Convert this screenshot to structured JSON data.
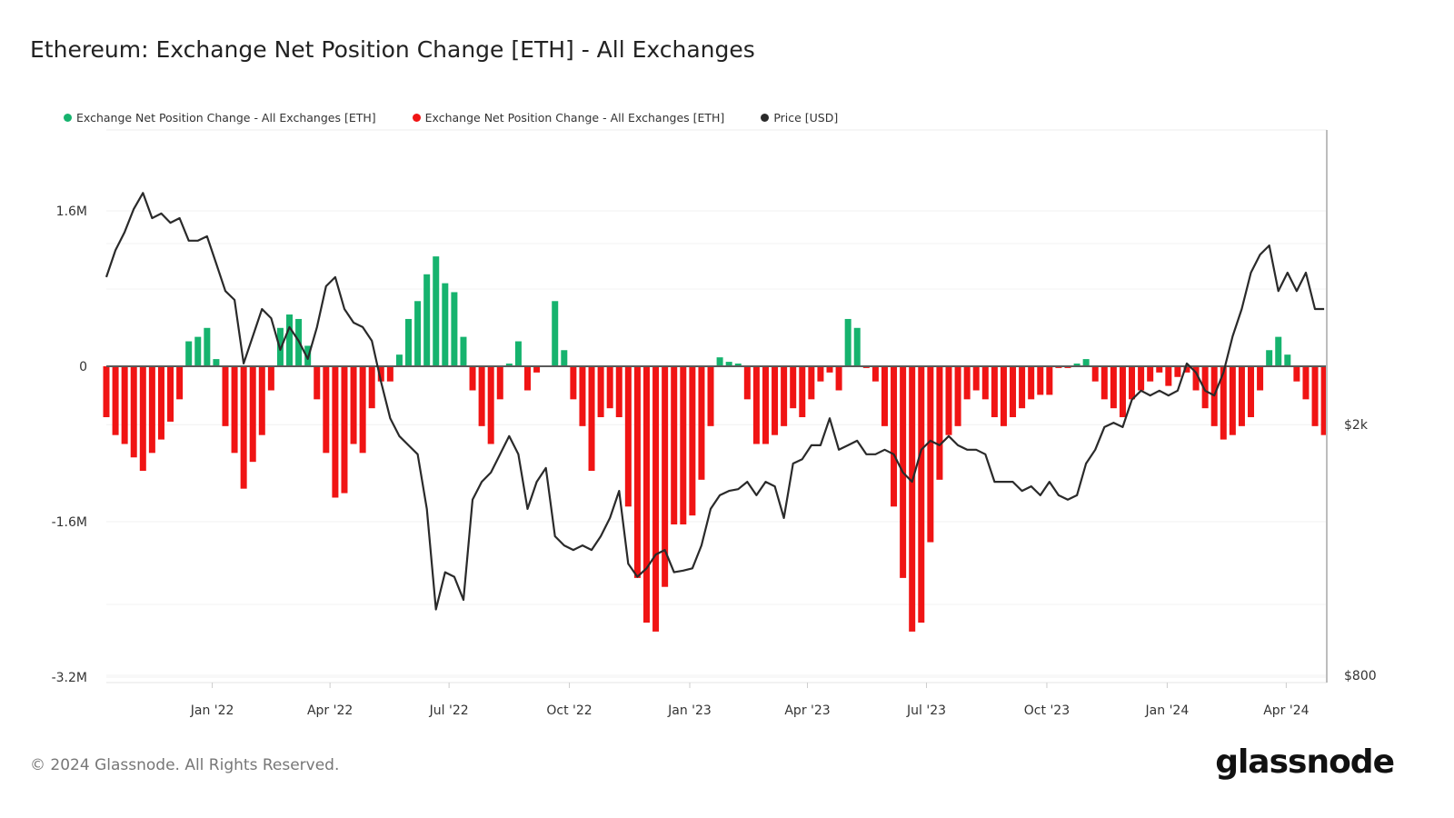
{
  "title": "Ethereum: Exchange Net Position Change [ETH] - All Exchanges",
  "footer": "© 2024 Glassnode. All Rights Reserved.",
  "logo": "glassnode",
  "colors": {
    "positive": "#16b36e",
    "negative": "#f01414",
    "price": "#2a2a2a",
    "zero_line": "#5a5a5a"
  },
  "chart_data": {
    "type": "bar",
    "title": "Ethereum: Exchange Net Position Change [ETH] - All Exchanges",
    "legend": [
      {
        "name": "Exchange Net Position Change - All Exchanges [ETH]",
        "color": "#16b36e"
      },
      {
        "name": "Exchange Net Position Change - All Exchanges [ETH]",
        "color": "#f01414"
      },
      {
        "name": "Price [USD]",
        "color": "#2a2a2a"
      }
    ],
    "legend_position": "top-left",
    "grid": true,
    "y_left": {
      "ticks": [
        "1.6M",
        "0",
        "-1.6M",
        "-3.2M"
      ],
      "tick_values": [
        1600000,
        0,
        -1600000,
        -3200000
      ],
      "range": [
        -3200000,
        1800000
      ]
    },
    "y_right": {
      "scale": "log",
      "ticks": [
        "$2k",
        "$800"
      ],
      "tick_values": [
        2000,
        800
      ]
    },
    "x_ticks": [
      "Jan '22",
      "Apr '22",
      "Jul '22",
      "Oct '22",
      "Jan '23",
      "Apr '23",
      "Jul '23",
      "Oct '23",
      "Jan '24",
      "Apr '24"
    ],
    "x_tick_dates": [
      "2022-01-01",
      "2022-04-01",
      "2022-07-01",
      "2022-10-01",
      "2023-01-01",
      "2023-04-01",
      "2023-07-01",
      "2023-10-01",
      "2024-01-01",
      "2024-04-01"
    ],
    "x_range": [
      "2021-10-12",
      "2024-05-02"
    ],
    "x": [
      "2021-10-12",
      "2021-10-19",
      "2021-10-26",
      "2021-11-02",
      "2021-11-09",
      "2021-11-16",
      "2021-11-23",
      "2021-11-30",
      "2021-12-07",
      "2021-12-14",
      "2021-12-21",
      "2021-12-28",
      "2022-01-04",
      "2022-01-11",
      "2022-01-18",
      "2022-01-25",
      "2022-02-01",
      "2022-02-08",
      "2022-02-15",
      "2022-02-22",
      "2022-03-01",
      "2022-03-08",
      "2022-03-15",
      "2022-03-22",
      "2022-03-29",
      "2022-04-05",
      "2022-04-12",
      "2022-04-19",
      "2022-04-26",
      "2022-05-03",
      "2022-05-10",
      "2022-05-17",
      "2022-05-24",
      "2022-05-31",
      "2022-06-07",
      "2022-06-14",
      "2022-06-21",
      "2022-06-28",
      "2022-07-05",
      "2022-07-12",
      "2022-07-19",
      "2022-07-26",
      "2022-08-02",
      "2022-08-09",
      "2022-08-16",
      "2022-08-23",
      "2022-08-30",
      "2022-09-06",
      "2022-09-13",
      "2022-09-20",
      "2022-09-27",
      "2022-10-04",
      "2022-10-11",
      "2022-10-18",
      "2022-10-25",
      "2022-11-01",
      "2022-11-08",
      "2022-11-15",
      "2022-11-22",
      "2022-11-29",
      "2022-12-06",
      "2022-12-13",
      "2022-12-20",
      "2022-12-27",
      "2023-01-03",
      "2023-01-10",
      "2023-01-17",
      "2023-01-24",
      "2023-01-31",
      "2023-02-07",
      "2023-02-14",
      "2023-02-21",
      "2023-02-28",
      "2023-03-07",
      "2023-03-14",
      "2023-03-21",
      "2023-03-28",
      "2023-04-04",
      "2023-04-11",
      "2023-04-18",
      "2023-04-25",
      "2023-05-02",
      "2023-05-09",
      "2023-05-16",
      "2023-05-23",
      "2023-05-30",
      "2023-06-06",
      "2023-06-13",
      "2023-06-20",
      "2023-06-27",
      "2023-07-04",
      "2023-07-11",
      "2023-07-18",
      "2023-07-25",
      "2023-08-01",
      "2023-08-08",
      "2023-08-15",
      "2023-08-22",
      "2023-08-29",
      "2023-09-05",
      "2023-09-12",
      "2023-09-19",
      "2023-09-26",
      "2023-10-03",
      "2023-10-10",
      "2023-10-17",
      "2023-10-24",
      "2023-10-31",
      "2023-11-07",
      "2023-11-14",
      "2023-11-21",
      "2023-11-28",
      "2023-12-05",
      "2023-12-12",
      "2023-12-19",
      "2023-12-26",
      "2024-01-02",
      "2024-01-09",
      "2024-01-16",
      "2024-01-23",
      "2024-01-30",
      "2024-02-06",
      "2024-02-13",
      "2024-02-20",
      "2024-02-27",
      "2024-03-05",
      "2024-03-12",
      "2024-03-19",
      "2024-03-26",
      "2024-04-02",
      "2024-04-09",
      "2024-04-16",
      "2024-04-23",
      "2024-04-30"
    ],
    "series": [
      {
        "name": "Exchange Net Position Change - All Exchanges [ETH]",
        "type": "bar",
        "axis": "left",
        "values": [
          -524000,
          -708000,
          -800000,
          -938000,
          -1076000,
          -892000,
          -754000,
          -570000,
          -340000,
          257000,
          303000,
          395000,
          74000,
          -616000,
          -892000,
          -1260000,
          -984000,
          -708000,
          -248000,
          395000,
          533000,
          487000,
          211000,
          -340000,
          -892000,
          -1352000,
          -1306000,
          -800000,
          -892000,
          -432000,
          -156000,
          -156000,
          120000,
          487000,
          671000,
          947000,
          1131000,
          855000,
          763000,
          303000,
          -248000,
          -616000,
          -800000,
          -340000,
          28000,
          257000,
          -248000,
          -64000,
          -9000,
          671000,
          166000,
          -340000,
          -616000,
          -1076000,
          -524000,
          -432000,
          -524000,
          -1444000,
          -2179000,
          -2639000,
          -2731000,
          -2271000,
          -1628000,
          -1628000,
          -1536000,
          -1168000,
          -616000,
          92000,
          46000,
          28000,
          -340000,
          -800000,
          -800000,
          -708000,
          -616000,
          -432000,
          -524000,
          -340000,
          -156000,
          -64000,
          -248000,
          487000,
          395000,
          -18000,
          -156000,
          -616000,
          -1444000,
          -2179000,
          -2731000,
          -2639000,
          -1811000,
          -1168000,
          -708000,
          -616000,
          -340000,
          -248000,
          -340000,
          -524000,
          -616000,
          -524000,
          -432000,
          -340000,
          -294000,
          -294000,
          -18000,
          -18000,
          28000,
          74000,
          -156000,
          -340000,
          -432000,
          -524000,
          -340000,
          -248000,
          -156000,
          -64000,
          -202000,
          -110000,
          -64000,
          -248000,
          -432000,
          -616000,
          -754000,
          -708000,
          -616000,
          -524000,
          -248000,
          166000,
          303000,
          120000,
          -156000,
          -340000,
          -616000,
          -708000
        ]
      },
      {
        "name": "Price [USD]",
        "type": "line",
        "axis": "right",
        "values": [
          3430,
          3785,
          4046,
          4400,
          4666,
          4255,
          4328,
          4184,
          4255,
          3918,
          3918,
          3982,
          3605,
          3260,
          3155,
          2501,
          2763,
          3052,
          2952,
          2629,
          2857,
          2717,
          2543,
          2857,
          3318,
          3430,
          3052,
          2904,
          2857,
          2717,
          2339,
          2047,
          1918,
          1855,
          1795,
          1470,
          1018,
          1166,
          1147,
          1054,
          1520,
          1623,
          1679,
          1795,
          1918,
          1795,
          1470,
          1623,
          1707,
          1330,
          1286,
          1265,
          1286,
          1265,
          1330,
          1422,
          1570,
          1203,
          1147,
          1183,
          1244,
          1265,
          1166,
          1173,
          1183,
          1286,
          1470,
          1545,
          1570,
          1580,
          1623,
          1545,
          1623,
          1596,
          1422,
          1735,
          1763,
          1855,
          1855,
          2047,
          1825,
          1855,
          1886,
          1795,
          1795,
          1825,
          1795,
          1679,
          1623,
          1825,
          1886,
          1855,
          1918,
          1855,
          1825,
          1825,
          1795,
          1623,
          1623,
          1623,
          1570,
          1596,
          1545,
          1623,
          1545,
          1520,
          1545,
          1735,
          1825,
          1982,
          2014,
          1982,
          2190,
          2265,
          2225,
          2265,
          2225,
          2265,
          2501,
          2420,
          2265,
          2225,
          2420,
          2763,
          3052,
          3486,
          3725,
          3850,
          3260,
          3486,
          3260,
          3486,
          3052,
          3052
        ]
      }
    ]
  }
}
